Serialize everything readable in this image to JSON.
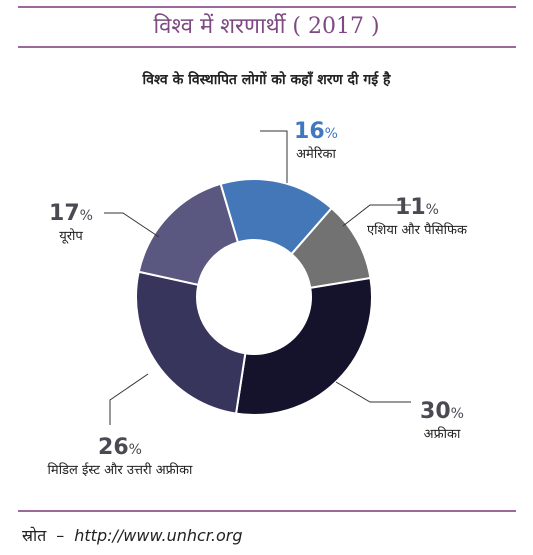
{
  "header": {
    "title": "विश्व में शरणार्थी ( 2017 )"
  },
  "chart_data": {
    "type": "pie",
    "title": "विश्व के विस्थापित लोगों को कहाँ शरण दी गई है",
    "unit": "%",
    "categories": [
      "अमेरिका",
      "एशिया और पैसिफिक",
      "अफ्रीका",
      "मिडिल ईस्ट और उत्तरी अफ्रीका",
      "यूरोप"
    ],
    "values": [
      16,
      11,
      30,
      26,
      17
    ],
    "colors": [
      "#4477b8",
      "#727272",
      "#15132b",
      "#37355c",
      "#5a5880"
    ],
    "donut": true
  },
  "footer": {
    "source_label": "स्रोत",
    "dash": "–",
    "source_url": "http://www.unhcr.org"
  }
}
